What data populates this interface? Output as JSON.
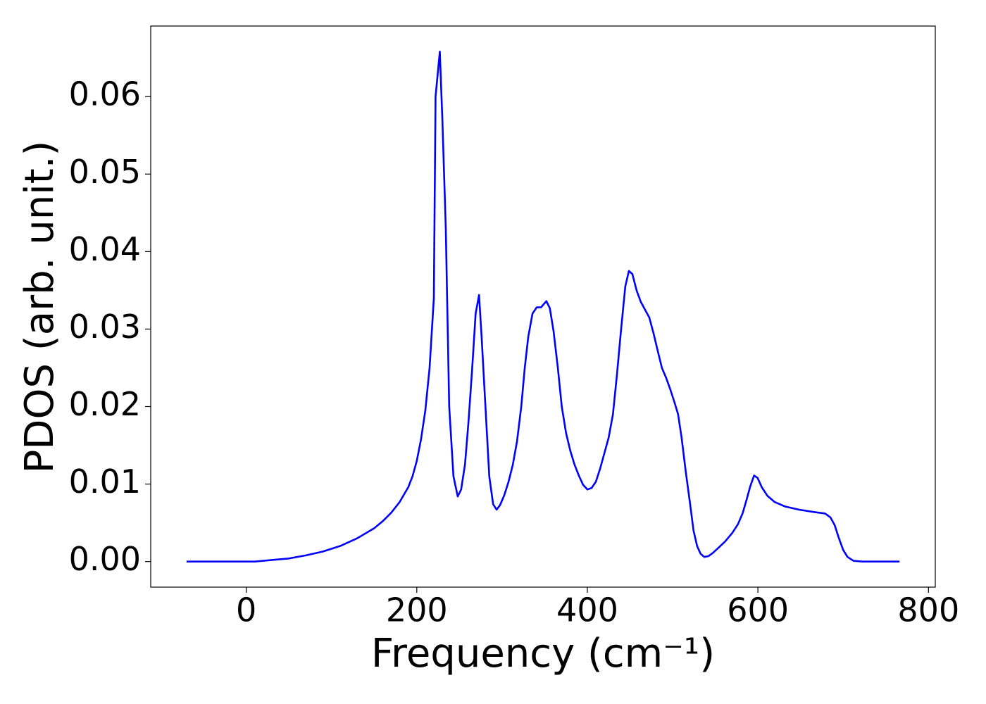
{
  "chart_data": {
    "type": "line",
    "xlabel": "Frequency (cm⁻¹)",
    "ylabel": "PDOS (arb. unit.)",
    "x": [
      -70,
      -40,
      -10,
      10,
      30,
      50,
      70,
      90,
      110,
      130,
      150,
      160,
      170,
      180,
      190,
      195,
      200,
      205,
      210,
      215,
      220,
      222,
      227,
      230,
      234,
      238,
      243,
      248,
      252,
      256.5,
      260.6,
      265,
      269,
      273,
      276,
      281,
      285,
      289.5,
      293.6,
      297.7,
      302.7,
      307.6,
      312.6,
      317.5,
      322.5,
      326.6,
      330.7,
      335.7,
      340.6,
      345.6,
      352,
      356,
      360.4,
      365.4,
      370,
      375,
      380,
      385,
      390,
      395,
      400,
      405,
      410,
      415,
      420,
      425,
      430,
      434.6,
      439.6,
      444.5,
      448.7,
      452.8,
      457.7,
      462.7,
      467.6,
      472.6,
      477.5,
      482.5,
      487.4,
      492.4,
      497.3,
      502.3,
      506.4,
      510.5,
      515.5,
      520.4,
      524.5,
      528.7,
      532.8,
      537,
      542,
      547,
      553,
      561.6,
      570,
      576.5,
      582,
      586,
      591,
      595.5,
      599.6,
      604.5,
      611,
      619.4,
      632,
      648,
      665,
      678.8,
      685,
      690,
      695,
      700,
      705,
      712,
      722.5,
      766
    ],
    "series": [
      {
        "name": "PDOS",
        "color": "#0000ff",
        "values": [
          0,
          0,
          0,
          0,
          0.0002,
          0.0004,
          0.0008,
          0.0013,
          0.002,
          0.003,
          0.0043,
          0.0052,
          0.0063,
          0.0077,
          0.0096,
          0.011,
          0.013,
          0.0158,
          0.0195,
          0.025,
          0.034,
          0.06,
          0.0658,
          0.057,
          0.043,
          0.02,
          0.011,
          0.0084,
          0.0093,
          0.0125,
          0.018,
          0.025,
          0.032,
          0.0344,
          0.029,
          0.019,
          0.011,
          0.0074,
          0.0067,
          0.0073,
          0.0086,
          0.0103,
          0.0125,
          0.0155,
          0.02,
          0.025,
          0.029,
          0.032,
          0.0328,
          0.0328,
          0.0336,
          0.0327,
          0.0297,
          0.025,
          0.02,
          0.0166,
          0.0143,
          0.0125,
          0.0111,
          0.0099,
          0.0093,
          0.0095,
          0.0103,
          0.012,
          0.014,
          0.016,
          0.019,
          0.024,
          0.03,
          0.0355,
          0.0375,
          0.0371,
          0.035,
          0.0335,
          0.0325,
          0.0315,
          0.0295,
          0.0272,
          0.025,
          0.0237,
          0.0222,
          0.0205,
          0.019,
          0.016,
          0.0115,
          0.0075,
          0.004,
          0.002,
          0.001,
          0.0006,
          0.0007,
          0.0011,
          0.0017,
          0.0026,
          0.0037,
          0.0048,
          0.0062,
          0.0077,
          0.0097,
          0.0111,
          0.0108,
          0.0096,
          0.0085,
          0.0077,
          0.0071,
          0.0067,
          0.0064,
          0.0062,
          0.0057,
          0.0047,
          0.003,
          0.0015,
          0.0006,
          0.0001,
          0,
          0
        ]
      }
    ],
    "xlim": [
      -112,
      808
    ],
    "xticks": [
      0,
      200,
      400,
      600,
      800
    ],
    "ylim": [
      -0.0033,
      0.0691
    ],
    "yticks": [
      {
        "value": 0,
        "label": "0.00"
      },
      {
        "value": 0.01,
        "label": "0.01"
      },
      {
        "value": 0.02,
        "label": "0.02"
      },
      {
        "value": 0.03,
        "label": "0.03"
      },
      {
        "value": 0.04,
        "label": "0.04"
      },
      {
        "value": 0.05,
        "label": "0.05"
      },
      {
        "value": 0.06,
        "label": "0.06"
      }
    ],
    "grid": false
  }
}
